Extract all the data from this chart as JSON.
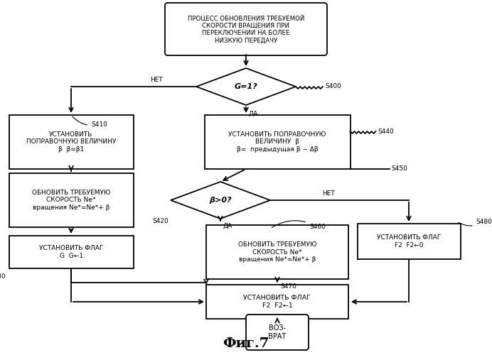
{
  "bg_color": "#ffffff",
  "title": "Фиг.7",
  "start_text": "ПРОЦЕСС ОБНОВЛЕНИЯ ТРЕБУЕМОЙ\nСКОРОСТИ ВРАЩЕНИЯ ПРИ\nПЕРЕКЛЮЧЕНИИ НА БОЛЕЕ\nНИЗКУЮ ПЕРЕДАЧУ",
  "s400_text": "G=1?",
  "s410_text": "УСТАНОВИТЬ\nПОПРАВОЧНУЮ ВЕЛИЧИНУ\nβ  β=β1",
  "s440_text": "УСТАНОВИТЬ ПОПРАВОЧНУЮ\nВЕЛИЧИНУ  β\nβ=  предыдущая β − Δβ",
  "s420_text": "β>0?",
  "s415_text": "ОБНОВИТЬ ТРЕБУЕМУЮ\nСКОРОСТЬ Ne*\nвращения Ne*=Ne*+ β",
  "s430_text": "УСТАНОВИТЬ ФЛАГ\nG  G←1",
  "s460_text": "ОБНОВИТЬ ТРЕБУЕМУЮ\nСКОРОСТЬ Ne*\nвращения Ne*=Ne*+ β",
  "s480_text": "УСТАНОВИТЬ ФЛАГ\nF2  F2←0",
  "s470_text": "УСТАНОВИТЬ ФЛАГ\nF2  F2←1",
  "end_text": "ВОЗ-\nВРАТ",
  "net": "НЕТ",
  "da": "ДА"
}
